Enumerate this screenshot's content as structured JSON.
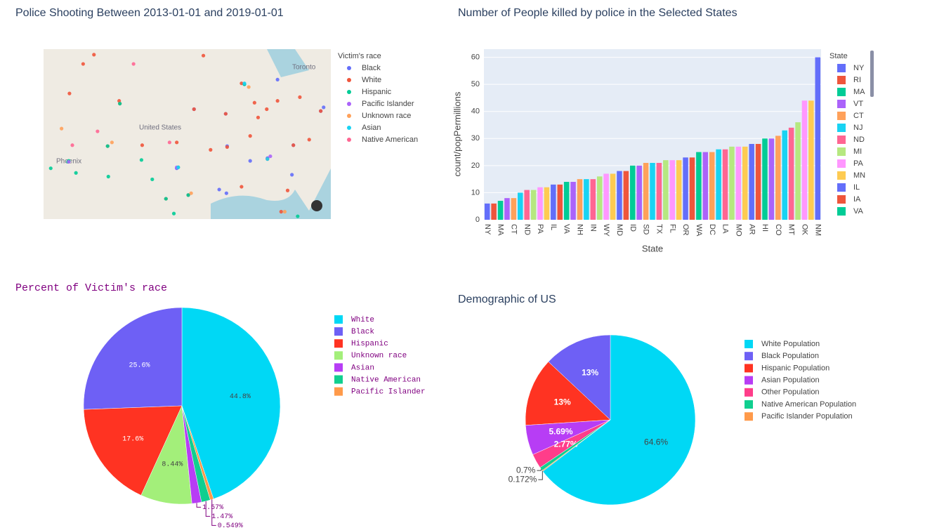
{
  "chart_data": [
    {
      "type": "scattermapbox",
      "title": "Police Shooting Between 2013-01-01 and 2019-01-01",
      "legend_title": "Victim's race",
      "lonlim": [
        -115.5,
        -75.6
      ],
      "latlim": [
        27.2,
        45.6
      ],
      "places": [
        "Toronto",
        "United States",
        "Phoenix"
      ],
      "series": [
        {
          "name": "Black",
          "color": "#636efa",
          "lon": [
            -90,
            -84.4,
            -95.4,
            -87.6,
            -83,
            -90.1,
            -86.8,
            -77,
            -76.6,
            -81,
            -91.1,
            -97,
            -94.6,
            -90.2,
            -80.8
          ],
          "lat": [
            35.1,
            33.8,
            29.8,
            41.8,
            42.3,
            30,
            33.5,
            38.9,
            39.3,
            32,
            30.4,
            32.7,
            39.1,
            38.6,
            35.2
          ]
        },
        {
          "name": "White",
          "color": "#EF553B",
          "lon": [
            -110,
            -105,
            -104.9,
            -97,
            -95.4,
            -90,
            -86.8,
            -84.4,
            -81.6,
            -82.5,
            -80.8,
            -78.6,
            -77,
            -83,
            -85.7,
            -88,
            -93.3,
            -94.6,
            -90.2,
            -92.3,
            -106.6,
            -101.8,
            -98.5,
            -86.2,
            -79.9,
            -96.8,
            -88,
            -84.5,
            -111.9,
            -108.5
          ],
          "lat": [
            44,
            40,
            39.7,
            35.5,
            29.8,
            35,
            36.2,
            33.7,
            30.3,
            28,
            35.2,
            35.8,
            38.9,
            40,
            38.2,
            41.9,
            44.9,
            39.1,
            38.6,
            34.7,
            35.1,
            35.2,
            29.4,
            39.8,
            40.4,
            32.8,
            30.7,
            39.1,
            40.8,
            45
          ]
        },
        {
          "name": "Hispanic",
          "color": "#00cc96",
          "lon": [
            -112,
            -111,
            -106.5,
            -106.6,
            -98.5,
            -97.4,
            -95.4,
            -104.9,
            -96.8,
            -101.9,
            -100.4,
            -114.5,
            -112.1,
            -87.6,
            -80.2
          ],
          "lat": [
            33.5,
            32.2,
            31.8,
            35.1,
            29.4,
            27.8,
            29.8,
            39.7,
            32.8,
            33.6,
            31.5,
            32.7,
            33.4,
            41.8,
            27.5
          ]
        },
        {
          "name": "Pacific Islander",
          "color": "#ab63fa",
          "lon": [
            -112,
            -97,
            -84
          ],
          "lat": [
            33.4,
            32.8,
            34
          ]
        },
        {
          "name": "Unknown race",
          "color": "#FFA15A",
          "lon": [
            -113,
            -106,
            -95,
            -82,
            -87
          ],
          "lat": [
            37,
            35.5,
            30,
            28,
            41.5
          ]
        },
        {
          "name": "Asian",
          "color": "#19d3f3",
          "lon": [
            -96.8,
            -87.6,
            -84.4
          ],
          "lat": [
            32.8,
            41.9,
            33.7
          ]
        },
        {
          "name": "Native American",
          "color": "#FF6692",
          "lon": [
            -108,
            -103,
            -111.5,
            -98
          ],
          "lat": [
            36.7,
            44,
            35.2,
            35.5
          ]
        }
      ]
    },
    {
      "type": "bar",
      "title": "Number of People killed by police in the Selected States",
      "xlabel": "State",
      "ylabel": "count/popPermillions",
      "legend_title": "State",
      "categories": [
        "NY",
        null,
        "MA",
        null,
        "CT",
        null,
        "ND",
        null,
        "PA",
        null,
        "IL",
        null,
        "VA",
        null,
        "NH",
        null,
        "IN",
        null,
        "WY",
        null,
        "MD",
        null,
        "ID",
        null,
        "SD",
        null,
        "TX",
        null,
        "FL",
        null,
        "OR",
        null,
        "WA",
        null,
        "DC",
        null,
        "LA",
        null,
        "MO",
        null,
        "AR",
        null,
        "HI",
        null,
        "CO",
        null,
        "MT",
        null,
        "OK",
        null,
        "NM"
      ],
      "values": [
        6,
        6,
        7,
        8,
        8,
        10,
        11,
        11,
        12,
        12,
        13,
        13,
        14,
        14,
        15,
        15,
        15,
        16,
        17,
        17,
        18,
        18,
        20,
        20,
        21,
        21,
        21,
        22,
        22,
        22,
        23,
        23,
        25,
        25,
        25,
        26,
        26,
        27,
        27,
        27,
        28,
        28,
        30,
        30,
        31,
        33,
        34,
        36,
        44,
        44,
        60
      ],
      "colors": [
        "#636efa",
        "#EF553B",
        "#00cc96",
        "#ab63fa",
        "#FFA15A",
        "#19d3f3",
        "#FF6692",
        "#B6E880",
        "#FF97FF",
        "#FECB52",
        "#636efa",
        "#EF553B",
        "#00cc96",
        "#ab63fa",
        "#FFA15A",
        "#19d3f3",
        "#FF6692",
        "#B6E880",
        "#FF97FF",
        "#FECB52",
        "#636efa",
        "#EF553B",
        "#00cc96",
        "#ab63fa",
        "#FFA15A",
        "#19d3f3",
        "#FF6692",
        "#B6E880",
        "#FF97FF",
        "#FECB52",
        "#636efa",
        "#EF553B",
        "#00cc96",
        "#ab63fa",
        "#FFA15A",
        "#19d3f3",
        "#FF6692",
        "#B6E880",
        "#FF97FF",
        "#FECB52",
        "#636efa",
        "#EF553B",
        "#00cc96",
        "#ab63fa",
        "#FFA15A",
        "#19d3f3",
        "#FF6692",
        "#B6E880",
        "#FF97FF",
        "#FECB52",
        "#636efa"
      ],
      "legend": [
        "NY",
        "RI",
        "MA",
        "VT",
        "CT",
        "NJ",
        "ND",
        "MI",
        "PA",
        "MN",
        "IL",
        "IA",
        "VA"
      ],
      "ylim": [
        0,
        63
      ],
      "yticks": [
        0,
        10,
        20,
        30,
        40,
        50,
        60
      ],
      "grid": true
    },
    {
      "type": "pie",
      "title": "Percent of Victim's race",
      "labels": [
        "White",
        "Black",
        "Hispanic",
        "Unknown race",
        "Asian",
        "Native American",
        "Pacific Islander"
      ],
      "values": [
        44.8,
        25.6,
        17.6,
        8.44,
        1.57,
        1.47,
        0.549
      ],
      "value_labels": [
        "44.8%",
        "25.6%",
        "17.6%",
        "8.44%",
        "1.57%",
        "1.47%",
        "0.549%"
      ],
      "colors": [
        "#00d8f5",
        "#6e60f5",
        "#ff3322",
        "#a3ef7a",
        "#b73df5",
        "#10cf8f",
        "#ff9a4a"
      ]
    },
    {
      "type": "pie",
      "title": "Demographic of US",
      "labels": [
        "White Population",
        "Black Population",
        "Hispanic Population",
        "Asian Population",
        "Other Population",
        "Native American Population",
        "Pacific Islander Population"
      ],
      "values": [
        64.6,
        13,
        13,
        5.69,
        2.77,
        0.7,
        0.172
      ],
      "value_labels": [
        "64.6%",
        "13%",
        "13%",
        "5.69%",
        "2.77%",
        "0.7%",
        "0.172%"
      ],
      "colors": [
        "#00d8f5",
        "#6e60f5",
        "#ff3322",
        "#b73df5",
        "#ff3d8a",
        "#10cf8f",
        "#ff9a4a"
      ]
    }
  ]
}
